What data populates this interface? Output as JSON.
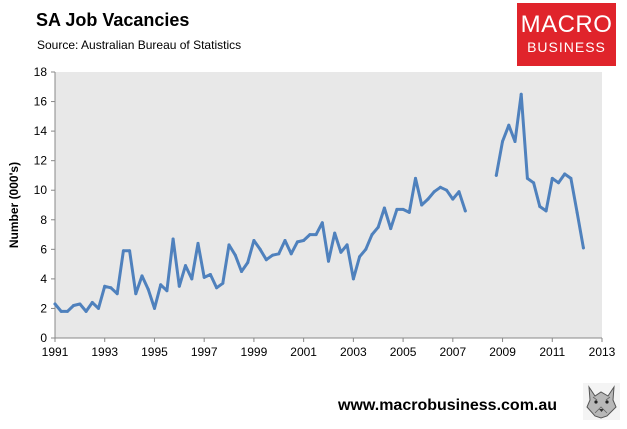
{
  "header": {
    "title": "SA Job Vacancies",
    "subtitle": "Source: Australian Bureau of Statistics"
  },
  "logo": {
    "line1": "MACRO",
    "line2": "BUSINESS"
  },
  "footer": {
    "website": "www.macrobusiness.com.au"
  },
  "colors": {
    "line": "#4f81bd",
    "plot_bg": "#e8e8e8",
    "logo_bg": "#e0242b"
  },
  "chart_data": {
    "type": "line",
    "title": "SA Job Vacancies",
    "subtitle": "Source: Australian Bureau of Statistics",
    "xlabel": "",
    "ylabel": "Number (000's)",
    "xlim": [
      1991,
      2013
    ],
    "ylim": [
      0,
      18
    ],
    "xticks": [
      1991,
      1993,
      1995,
      1997,
      1999,
      2001,
      2003,
      2005,
      2007,
      2009,
      2011,
      2013
    ],
    "yticks": [
      0,
      2,
      4,
      6,
      8,
      10,
      12,
      14,
      16,
      18
    ],
    "grid": false,
    "legend": "none",
    "segments": [
      [
        [
          1991.0,
          2.3
        ],
        [
          1991.25,
          1.8
        ],
        [
          1991.5,
          1.8
        ],
        [
          1991.75,
          2.2
        ],
        [
          1992.0,
          2.3
        ],
        [
          1992.25,
          1.8
        ],
        [
          1992.5,
          2.4
        ],
        [
          1992.75,
          2.0
        ],
        [
          1993.0,
          3.5
        ],
        [
          1993.25,
          3.4
        ],
        [
          1993.5,
          3.0
        ],
        [
          1993.75,
          5.9
        ],
        [
          1994.0,
          5.9
        ],
        [
          1994.25,
          3.0
        ],
        [
          1994.5,
          4.2
        ],
        [
          1994.75,
          3.3
        ],
        [
          1995.0,
          2.0
        ],
        [
          1995.25,
          3.6
        ],
        [
          1995.5,
          3.2
        ],
        [
          1995.75,
          6.7
        ],
        [
          1996.0,
          3.5
        ],
        [
          1996.25,
          4.9
        ],
        [
          1996.5,
          4.0
        ],
        [
          1996.75,
          6.4
        ],
        [
          1997.0,
          4.1
        ],
        [
          1997.25,
          4.3
        ],
        [
          1997.5,
          3.4
        ],
        [
          1997.75,
          3.7
        ],
        [
          1998.0,
          6.3
        ],
        [
          1998.25,
          5.6
        ],
        [
          1998.5,
          4.5
        ],
        [
          1998.75,
          5.1
        ],
        [
          1999.0,
          6.6
        ],
        [
          1999.25,
          6.0
        ],
        [
          1999.5,
          5.3
        ],
        [
          1999.75,
          5.6
        ],
        [
          2000.0,
          5.7
        ],
        [
          2000.25,
          6.6
        ],
        [
          2000.5,
          5.7
        ],
        [
          2000.75,
          6.5
        ],
        [
          2001.0,
          6.6
        ],
        [
          2001.25,
          7.0
        ],
        [
          2001.5,
          7.0
        ],
        [
          2001.75,
          7.8
        ],
        [
          2002.0,
          5.2
        ],
        [
          2002.25,
          7.1
        ],
        [
          2002.5,
          5.8
        ],
        [
          2002.75,
          6.3
        ],
        [
          2003.0,
          4.0
        ],
        [
          2003.25,
          5.5
        ],
        [
          2003.5,
          6.0
        ],
        [
          2003.75,
          7.0
        ],
        [
          2004.0,
          7.5
        ],
        [
          2004.25,
          8.8
        ],
        [
          2004.5,
          7.4
        ],
        [
          2004.75,
          8.7
        ],
        [
          2005.0,
          8.7
        ],
        [
          2005.25,
          8.5
        ],
        [
          2005.5,
          10.8
        ],
        [
          2005.75,
          9.0
        ],
        [
          2006.0,
          9.4
        ],
        [
          2006.25,
          9.9
        ],
        [
          2006.5,
          10.2
        ],
        [
          2006.75,
          10.0
        ],
        [
          2007.0,
          9.4
        ],
        [
          2007.25,
          9.9
        ],
        [
          2007.5,
          8.6
        ]
      ],
      [
        [
          2008.75,
          11.0
        ],
        [
          2009.0,
          13.3
        ],
        [
          2009.25,
          14.4
        ],
        [
          2009.5,
          13.3
        ],
        [
          2009.75,
          16.5
        ],
        [
          2010.0,
          10.8
        ],
        [
          2010.25,
          10.5
        ],
        [
          2010.5,
          8.9
        ],
        [
          2010.75,
          8.6
        ],
        [
          2011.0,
          10.8
        ],
        [
          2011.25,
          10.5
        ],
        [
          2011.5,
          11.1
        ],
        [
          2011.75,
          10.8
        ],
        [
          2012.0,
          8.5
        ],
        [
          2012.25,
          6.1
        ]
      ]
    ]
  }
}
